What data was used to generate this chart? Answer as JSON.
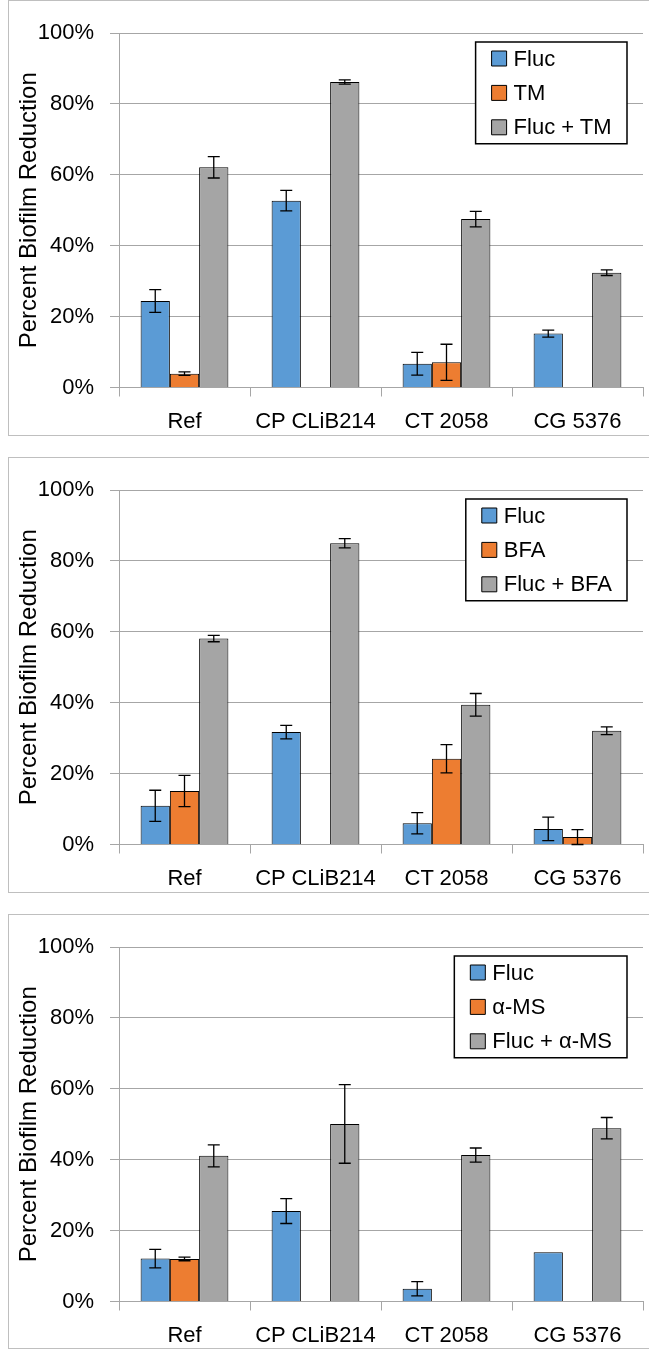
{
  "chart_data": [
    {
      "type": "bar",
      "ylabel": "Percent Biofilm Reduction",
      "categories": [
        "Ref",
        "CP CLiB214",
        "CT 2058",
        "CG 5376"
      ],
      "series": [
        {
          "name": "Fluc",
          "color": "#5b9bd5",
          "values": [
            24.4,
            52.7,
            6.7,
            15.2
          ],
          "errors": [
            3.2,
            2.9,
            3.2,
            1.0
          ]
        },
        {
          "name": "TM",
          "color": "#ed7d31",
          "values": [
            3.9,
            0,
            7.1,
            0
          ],
          "errors": [
            0.5,
            null,
            5.1,
            null
          ]
        },
        {
          "name": "Fluc + TM",
          "color": "#a5a5a5",
          "values": [
            62.1,
            86.2,
            47.5,
            32.4
          ],
          "errors": [
            3.0,
            0.6,
            2.2,
            0.8
          ]
        }
      ],
      "ylim": [
        0,
        100
      ],
      "yticks": [
        {
          "value": 0,
          "label": "0%"
        },
        {
          "value": 20,
          "label": "20%"
        },
        {
          "value": 40,
          "label": "40%"
        },
        {
          "value": 60,
          "label": "60%"
        },
        {
          "value": 80,
          "label": "80%"
        },
        {
          "value": 100,
          "label": "100%"
        }
      ],
      "grid": "y",
      "legend": "top right"
    },
    {
      "type": "bar",
      "ylabel": "Percent Biofilm Reduction",
      "categories": [
        "Ref",
        "CP CLiB214",
        "CT 2058",
        "CG 5376"
      ],
      "series": [
        {
          "name": "Fluc",
          "color": "#5b9bd5",
          "values": [
            10.9,
            31.7,
            6.0,
            4.4
          ],
          "errors": [
            4.4,
            1.9,
            3.0,
            3.3
          ]
        },
        {
          "name": "BFA",
          "color": "#ed7d31",
          "values": [
            15.1,
            0,
            24.2,
            2.1
          ],
          "errors": [
            4.4,
            null,
            4.0,
            2.1
          ]
        },
        {
          "name": "Fluc + BFA",
          "color": "#a5a5a5",
          "values": [
            58.1,
            85.0,
            39.4,
            32.1
          ],
          "errors": [
            0.9,
            1.3,
            3.2,
            1.1
          ]
        }
      ],
      "ylim": [
        0,
        100
      ],
      "yticks": [
        {
          "value": 0,
          "label": "0%"
        },
        {
          "value": 20,
          "label": "20%"
        },
        {
          "value": 40,
          "label": "40%"
        },
        {
          "value": 60,
          "label": "60%"
        },
        {
          "value": 80,
          "label": "80%"
        },
        {
          "value": 100,
          "label": "100%"
        }
      ],
      "grid": "y",
      "legend": "top right"
    },
    {
      "type": "bar",
      "ylabel": "Percent Biofilm Reduction",
      "categories": [
        "Ref",
        "CP CLiB214",
        "CT 2058",
        "CG 5376"
      ],
      "series": [
        {
          "name": "Fluc",
          "color": "#5b9bd5",
          "values": [
            12.1,
            25.5,
            3.6,
            13.9
          ],
          "errors": [
            2.6,
            3.5,
            2.0,
            null
          ]
        },
        {
          "name": "α-MS",
          "color": "#ed7d31",
          "values": [
            12.0,
            null,
            null,
            0
          ],
          "errors": [
            0.5,
            null,
            null,
            null
          ]
        },
        {
          "name": "Fluc + α-MS",
          "color": "#a5a5a5",
          "values": [
            41.1,
            50.1,
            41.3,
            48.9
          ],
          "errors": [
            3.1,
            11.1,
            2.0,
            3.0
          ]
        }
      ],
      "ylim": [
        0,
        100
      ],
      "yticks": [
        {
          "value": 0,
          "label": "0%"
        },
        {
          "value": 20,
          "label": "20%"
        },
        {
          "value": 40,
          "label": "40%"
        },
        {
          "value": 60,
          "label": "60%"
        },
        {
          "value": 80,
          "label": "80%"
        },
        {
          "value": 100,
          "label": "100%"
        }
      ],
      "grid": "y",
      "legend": "top right"
    }
  ]
}
